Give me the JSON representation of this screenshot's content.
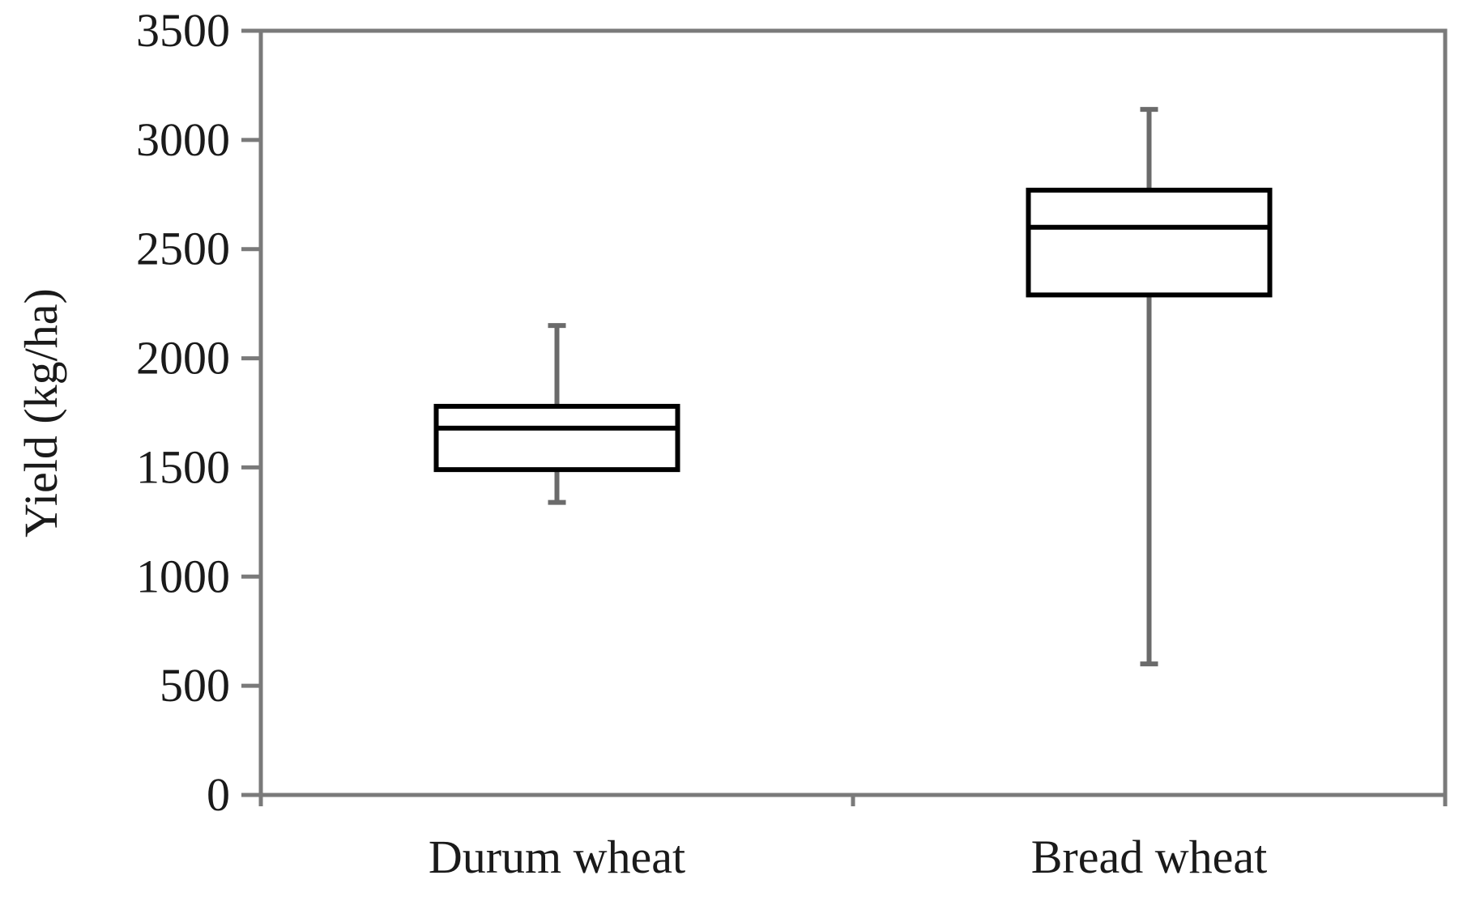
{
  "chart_data": {
    "type": "boxplot",
    "title": "",
    "xlabel": "",
    "ylabel": "Yield (kg/ha)",
    "ylim": [
      0,
      3500
    ],
    "yticks": [
      0,
      500,
      1000,
      1500,
      2000,
      2500,
      3000,
      3500
    ],
    "ytick_labels": [
      "0",
      "500",
      "1000",
      "1500",
      "2000",
      "2500",
      "3000",
      "3500"
    ],
    "categories": [
      "Durum wheat",
      "Bread wheat"
    ],
    "boxes": [
      {
        "category": "Durum wheat",
        "min": 1340,
        "q1": 1490,
        "median": 1680,
        "q3": 1780,
        "max": 2150
      },
      {
        "category": "Bread wheat",
        "min": 600,
        "q1": 2290,
        "median": 2600,
        "q3": 2770,
        "max": 3140
      }
    ],
    "grid": false,
    "legend": "none",
    "colors": {
      "axis": "#7a7a7a",
      "whisker": "#6b6b6b",
      "box": "#000000",
      "box_fill": "#ffffff"
    }
  }
}
